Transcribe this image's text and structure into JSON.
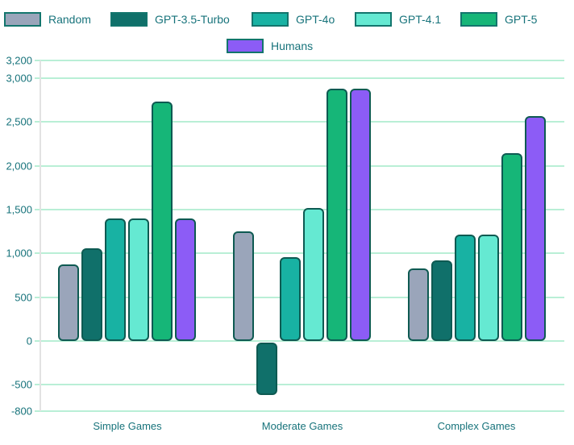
{
  "chart_data": {
    "type": "bar",
    "title": "",
    "xlabel": "",
    "ylabel": "",
    "categories": [
      "Simple Games",
      "Moderate Games",
      "Complex Games"
    ],
    "series": [
      {
        "name": "Random",
        "color": "#9aa5ba",
        "values": [
          870,
          1250,
          830
        ]
      },
      {
        "name": "GPT-3.5-Turbo",
        "color": "#10706a",
        "values": [
          1060,
          -620,
          920
        ]
      },
      {
        "name": "GPT-4o",
        "color": "#18b2a3",
        "values": [
          1400,
          960,
          1210
        ]
      },
      {
        "name": "GPT-4.1",
        "color": "#65e9d2",
        "values": [
          1400,
          1520,
          1210
        ]
      },
      {
        "name": "GPT-5",
        "color": "#16b678",
        "values": [
          2730,
          2880,
          2140
        ]
      },
      {
        "name": "Humans",
        "color": "#8c5cf6",
        "values": [
          1400,
          2880,
          2570
        ]
      }
    ],
    "y_ticks": [
      3200,
      3000,
      2500,
      2000,
      1500,
      1000,
      500,
      0,
      -500,
      -800
    ],
    "ylim": [
      -800,
      3200
    ],
    "grid": true,
    "legend_position": "top",
    "legend_rows": [
      [
        "Random",
        "GPT-3.5-Turbo",
        "GPT-4o",
        "GPT-4.1",
        "GPT-5"
      ],
      [
        "Humans"
      ]
    ]
  },
  "colors": {
    "text": "#17737b",
    "grid": "#b9efd6",
    "axis_line": "#e2e2e2",
    "bar_border": "#0e5a52",
    "swatch_border": "#13756d",
    "background": "#ffffff"
  }
}
